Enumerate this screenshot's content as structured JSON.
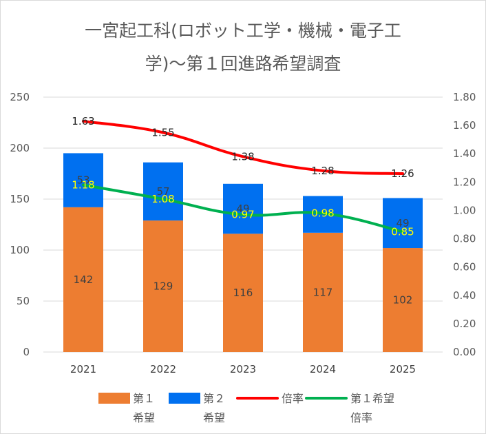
{
  "chart_data": {
    "type": "bar",
    "stacked": true,
    "title_lines": [
      "一宮起工科(ロボット工学・機械・電子工",
      "学)～第１回進路希望調査"
    ],
    "categories": [
      "2021",
      "2022",
      "2023",
      "2024",
      "2025"
    ],
    "series": [
      {
        "name": "第１希望",
        "legend_lines": [
          "第１",
          "希望"
        ],
        "type": "bar",
        "axis": "left",
        "color": "#ed7d31",
        "values": [
          142,
          129,
          116,
          117,
          102
        ]
      },
      {
        "name": "第２希望",
        "legend_lines": [
          "第２",
          "希望"
        ],
        "type": "bar",
        "axis": "left",
        "color": "#0070f0",
        "values": [
          53,
          57,
          49,
          36,
          49
        ],
        "value_labels": [
          "53",
          "57",
          "49",
          "",
          "49"
        ]
      },
      {
        "name": "倍率",
        "legend_lines": [
          "倍率"
        ],
        "type": "line",
        "axis": "right",
        "color": "#ff0000",
        "values": [
          1.63,
          1.55,
          1.38,
          1.28,
          1.26
        ],
        "value_labels": [
          "1.63",
          "1.55",
          "1.38",
          "1.28",
          "1.26"
        ]
      },
      {
        "name": "第１希望倍率",
        "legend_lines": [
          "第１希望",
          "倍率"
        ],
        "type": "line",
        "axis": "right",
        "color": "#00b050",
        "values": [
          1.18,
          1.08,
          0.97,
          0.98,
          0.85
        ],
        "value_labels": [
          "1.18",
          "1.08",
          "0.97",
          "0.98",
          "0.85"
        ]
      }
    ],
    "y_left": {
      "min": 0,
      "max": 250,
      "ticks": [
        "0",
        "50",
        "100",
        "150",
        "200",
        "250"
      ]
    },
    "y_right": {
      "min": 0,
      "max": 1.8,
      "ticks": [
        "0.00",
        "0.20",
        "0.40",
        "0.60",
        "0.80",
        "1.00",
        "1.20",
        "1.40",
        "1.60",
        "1.80"
      ]
    },
    "grid": true,
    "legend_position": "bottom"
  }
}
